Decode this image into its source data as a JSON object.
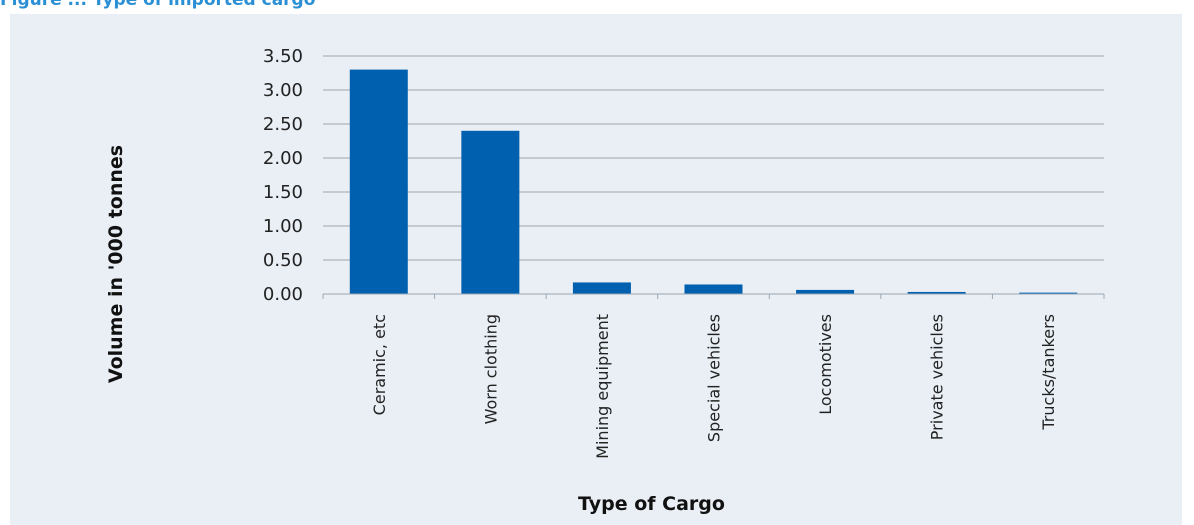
{
  "page": {
    "title": "Figure ... Type of imported cargo"
  },
  "chart_data": {
    "type": "bar",
    "title": "",
    "xlabel": "Type of Cargo",
    "ylabel": "Volume in '000 tonnes",
    "ylim": [
      0,
      3.5
    ],
    "yticks": [
      "0.00",
      "0.50",
      "1.00",
      "1.50",
      "2.00",
      "2.50",
      "3.00",
      "3.50"
    ],
    "ytick_values": [
      0,
      0.5,
      1.0,
      1.5,
      2.0,
      2.5,
      3.0,
      3.5
    ],
    "grid": true,
    "legend": "none",
    "categories": [
      "Ceramic, etc",
      "Worn clothing",
      "Mining equipment",
      "Special vehicles",
      "Locomotives",
      "Private vehicles",
      "Trucks/tankers"
    ],
    "values": [
      3.3,
      2.4,
      0.17,
      0.14,
      0.06,
      0.03,
      0.02
    ],
    "colors": {
      "bar": "#0060b0",
      "grid": "#9aa6b2",
      "panel": "#e9eff5",
      "title": "#2a8fd4"
    }
  }
}
